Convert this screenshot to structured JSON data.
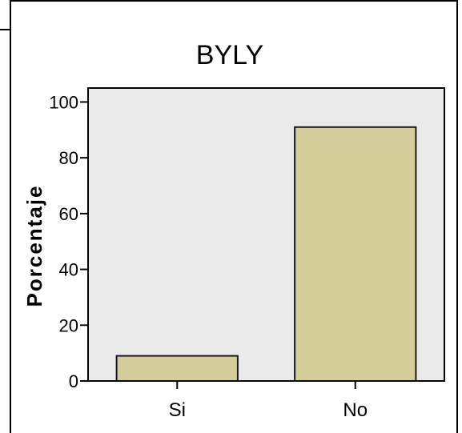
{
  "colors": {
    "plot_background": "#eaeaea",
    "bar_fill": "#d4cf9a",
    "bar_stroke": "#1a1a1a",
    "axis": "#000000",
    "text": "#000000"
  },
  "chart_data": {
    "type": "bar",
    "title": "BYLY",
    "xlabel": "",
    "ylabel": "Porcentaje",
    "categories": [
      "Si",
      "No"
    ],
    "values": [
      9,
      91
    ],
    "ylim": [
      0,
      105
    ],
    "yticks": [
      0,
      20,
      40,
      60,
      80,
      100
    ],
    "ytick_labels": [
      "0",
      "20",
      "40",
      "60",
      "80",
      "100"
    ],
    "grid": false,
    "legend": "none"
  }
}
